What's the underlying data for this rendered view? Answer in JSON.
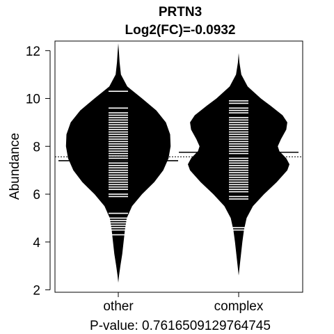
{
  "chart_data": {
    "type": "beanplot",
    "title": "PRTN3",
    "subtitle": "Log2(FC)=-0.0932",
    "xlabel": "P-value: 0.7616509129764745",
    "ylabel": "Abundance",
    "ylim": [
      1.9,
      12.4
    ],
    "yticks": [
      2,
      4,
      6,
      8,
      10,
      12
    ],
    "categories": [
      "other",
      "complex"
    ],
    "overall_mean": 7.56,
    "groups": [
      {
        "name": "other",
        "mean": 7.4,
        "range": [
          2.3,
          12.3
        ],
        "density": [
          [
            2.3,
            0.0
          ],
          [
            2.6,
            0.015
          ],
          [
            3.0,
            0.04
          ],
          [
            3.5,
            0.075
          ],
          [
            4.0,
            0.1
          ],
          [
            4.5,
            0.125
          ],
          [
            5.0,
            0.16
          ],
          [
            5.5,
            0.26
          ],
          [
            6.0,
            0.45
          ],
          [
            6.5,
            0.68
          ],
          [
            7.0,
            0.85
          ],
          [
            7.5,
            0.95
          ],
          [
            8.0,
            0.99
          ],
          [
            8.5,
            0.98
          ],
          [
            9.0,
            0.9
          ],
          [
            9.5,
            0.72
          ],
          [
            10.0,
            0.45
          ],
          [
            10.5,
            0.17
          ],
          [
            11.0,
            0.05
          ],
          [
            11.5,
            0.025
          ],
          [
            12.0,
            0.01
          ],
          [
            12.3,
            0.0
          ]
        ],
        "values": [
          4.3,
          4.5,
          4.6,
          4.7,
          4.8,
          4.9,
          5.0,
          5.2,
          5.9,
          6.0,
          6.2,
          6.3,
          6.4,
          6.5,
          6.6,
          6.7,
          6.8,
          6.9,
          7.0,
          7.1,
          7.2,
          7.3,
          7.4,
          7.5,
          7.6,
          7.7,
          7.8,
          7.9,
          8.0,
          8.1,
          8.2,
          8.3,
          8.4,
          8.5,
          8.6,
          8.7,
          8.8,
          8.9,
          9.0,
          9.1,
          9.2,
          9.3,
          9.4,
          9.6,
          10.3
        ]
      },
      {
        "name": "complex",
        "mean": 7.75,
        "range": [
          2.6,
          11.9
        ],
        "density": [
          [
            2.6,
            0.0
          ],
          [
            3.0,
            0.02
          ],
          [
            3.5,
            0.045
          ],
          [
            4.0,
            0.07
          ],
          [
            4.5,
            0.1
          ],
          [
            5.0,
            0.15
          ],
          [
            5.5,
            0.27
          ],
          [
            6.0,
            0.48
          ],
          [
            6.5,
            0.72
          ],
          [
            7.0,
            0.92
          ],
          [
            7.25,
            0.96
          ],
          [
            7.5,
            0.9
          ],
          [
            7.8,
            0.77
          ],
          [
            8.0,
            0.74
          ],
          [
            8.3,
            0.8
          ],
          [
            8.7,
            0.9
          ],
          [
            9.0,
            0.92
          ],
          [
            9.3,
            0.83
          ],
          [
            9.7,
            0.6
          ],
          [
            10.0,
            0.42
          ],
          [
            10.5,
            0.17
          ],
          [
            11.0,
            0.05
          ],
          [
            11.5,
            0.015
          ],
          [
            11.9,
            0.0
          ]
        ],
        "values": [
          4.5,
          4.6,
          5.8,
          5.9,
          6.1,
          6.2,
          6.3,
          6.4,
          6.5,
          6.6,
          6.7,
          6.8,
          6.9,
          7.0,
          7.1,
          7.2,
          7.3,
          7.4,
          7.5,
          7.7,
          7.8,
          7.9,
          8.0,
          8.1,
          8.2,
          8.3,
          8.4,
          8.5,
          8.6,
          8.7,
          8.8,
          8.9,
          9.0,
          9.1,
          9.2,
          9.4,
          9.5,
          9.6,
          9.8,
          9.9
        ]
      }
    ],
    "colors": {
      "bean": "#000000",
      "line": "#ffffff",
      "background": "#ffffff"
    }
  }
}
